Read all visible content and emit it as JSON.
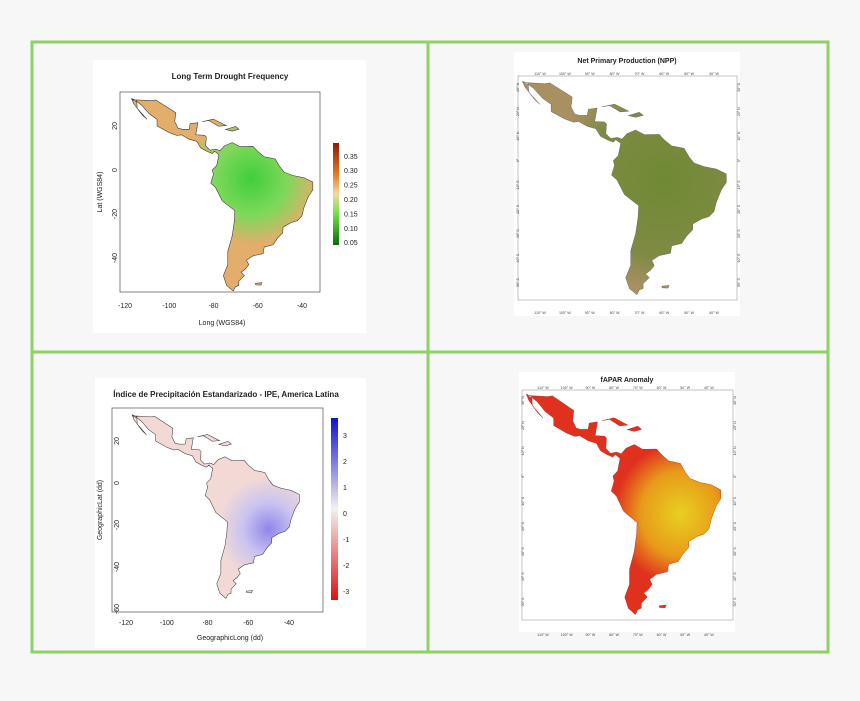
{
  "panels": [
    {
      "title": "Long Term Drought Frequency",
      "x_label": "Long (WGS84)",
      "y_label": "Lat (WGS84)",
      "x_ticks": [
        "-120",
        "-100",
        "-80",
        "-60",
        "-40"
      ],
      "y_ticks": [
        "20",
        "0",
        "-20",
        "-40"
      ],
      "colorbar_ticks": [
        "0.35",
        "0.30",
        "0.25",
        "0.20",
        "0.15",
        "0.10",
        "0.05"
      ]
    },
    {
      "title": "Net Primary Production (NPP)",
      "lon_ticks": [
        "110° W",
        "100° W",
        "90° W",
        "80° W",
        "70° W",
        "60° W",
        "50° W",
        "40° W"
      ],
      "lat_ticks": [
        "30° N",
        "20° N",
        "10° N",
        "0°",
        "10° S",
        "20° S",
        "30° S",
        "40° S",
        "50° S"
      ]
    },
    {
      "title": "Índice de Precipitación Estandarizado - IPE, America Latina",
      "x_label": "GeographicLong (dd)",
      "y_label": "GeographicLat (dd)",
      "x_ticks": [
        "-120",
        "-100",
        "-80",
        "-60",
        "-40"
      ],
      "y_ticks": [
        "20",
        "0",
        "-20",
        "-40",
        "-60"
      ],
      "colorbar_ticks": [
        "3",
        "2",
        "1",
        "0",
        "-1",
        "-2",
        "-3"
      ]
    },
    {
      "title": "fAPAR Anomaly",
      "lon_ticks": [
        "110° W",
        "100° W",
        "90° W",
        "80° W",
        "70° W",
        "60° W",
        "50° W",
        "40° W"
      ],
      "lat_ticks": [
        "30° N",
        "20° N",
        "10° N",
        "0°",
        "10° S",
        "20° S",
        "30° S",
        "40° S",
        "50° S"
      ]
    }
  ]
}
